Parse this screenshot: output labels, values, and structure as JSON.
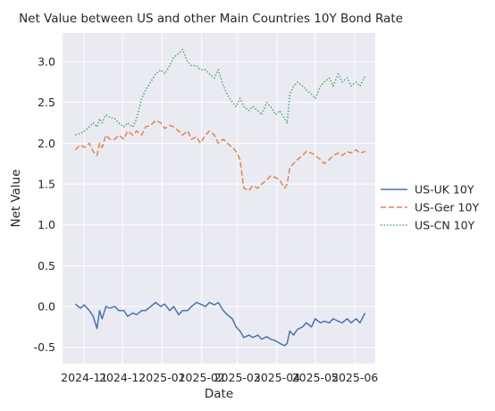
{
  "chart_data": {
    "type": "line",
    "title": "Net Value between US and other Main Countries 10Y Bond Rate",
    "xlabel": "Date",
    "ylabel": "Net Value",
    "ylim": [
      -0.7,
      3.35
    ],
    "xlim": [
      "2024-10-15",
      "2025-06-17"
    ],
    "grid": true,
    "legend_position": "right",
    "x_ticks": [
      "2024-11",
      "2024-12",
      "2025-01",
      "2025-02",
      "2025-03",
      "2025-04",
      "2025-05",
      "2025-06"
    ],
    "y_ticks": [
      "-0.5",
      "0.0",
      "0.5",
      "1.0",
      "1.5",
      "2.0",
      "2.5",
      "3.0"
    ],
    "series": [
      {
        "name": "US-UK 10Y",
        "color": "#4c72b0",
        "style": "solid",
        "points": [
          [
            "2024-10-25",
            0.03
          ],
          [
            "2024-10-29",
            -0.02
          ],
          [
            "2024-11-01",
            0.02
          ],
          [
            "2024-11-05",
            -0.05
          ],
          [
            "2024-11-08",
            -0.12
          ],
          [
            "2024-11-11",
            -0.27
          ],
          [
            "2024-11-13",
            -0.05
          ],
          [
            "2024-11-15",
            -0.15
          ],
          [
            "2024-11-18",
            0.0
          ],
          [
            "2024-11-21",
            -0.02
          ],
          [
            "2024-11-25",
            0.0
          ],
          [
            "2024-11-28",
            -0.05
          ],
          [
            "2024-12-02",
            -0.05
          ],
          [
            "2024-12-05",
            -0.12
          ],
          [
            "2024-12-09",
            -0.08
          ],
          [
            "2024-12-12",
            -0.1
          ],
          [
            "2024-12-16",
            -0.05
          ],
          [
            "2024-12-19",
            -0.05
          ],
          [
            "2024-12-23",
            0.0
          ],
          [
            "2024-12-27",
            0.05
          ],
          [
            "2024-12-31",
            0.0
          ],
          [
            "2025-01-03",
            0.03
          ],
          [
            "2025-01-07",
            -0.05
          ],
          [
            "2025-01-10",
            0.0
          ],
          [
            "2025-01-14",
            -0.1
          ],
          [
            "2025-01-17",
            -0.05
          ],
          [
            "2025-01-21",
            -0.05
          ],
          [
            "2025-01-24",
            0.0
          ],
          [
            "2025-01-28",
            0.05
          ],
          [
            "2025-01-31",
            0.03
          ],
          [
            "2025-02-04",
            0.0
          ],
          [
            "2025-02-07",
            0.05
          ],
          [
            "2025-02-11",
            0.02
          ],
          [
            "2025-02-14",
            0.05
          ],
          [
            "2025-02-18",
            -0.05
          ],
          [
            "2025-02-21",
            -0.1
          ],
          [
            "2025-02-25",
            -0.15
          ],
          [
            "2025-02-28",
            -0.25
          ],
          [
            "2025-03-03",
            -0.3
          ],
          [
            "2025-03-06",
            -0.38
          ],
          [
            "2025-03-10",
            -0.35
          ],
          [
            "2025-03-13",
            -0.38
          ],
          [
            "2025-03-17",
            -0.35
          ],
          [
            "2025-03-20",
            -0.4
          ],
          [
            "2025-03-24",
            -0.37
          ],
          [
            "2025-03-27",
            -0.4
          ],
          [
            "2025-03-31",
            -0.42
          ],
          [
            "2025-04-03",
            -0.45
          ],
          [
            "2025-04-07",
            -0.48
          ],
          [
            "2025-04-09",
            -0.45
          ],
          [
            "2025-04-11",
            -0.3
          ],
          [
            "2025-04-14",
            -0.35
          ],
          [
            "2025-04-17",
            -0.28
          ],
          [
            "2025-04-21",
            -0.25
          ],
          [
            "2025-04-24",
            -0.2
          ],
          [
            "2025-04-28",
            -0.25
          ],
          [
            "2025-05-01",
            -0.15
          ],
          [
            "2025-05-05",
            -0.2
          ],
          [
            "2025-05-08",
            -0.18
          ],
          [
            "2025-05-12",
            -0.2
          ],
          [
            "2025-05-15",
            -0.15
          ],
          [
            "2025-05-19",
            -0.18
          ],
          [
            "2025-05-22",
            -0.2
          ],
          [
            "2025-05-26",
            -0.15
          ],
          [
            "2025-05-29",
            -0.2
          ],
          [
            "2025-06-02",
            -0.15
          ],
          [
            "2025-06-05",
            -0.2
          ],
          [
            "2025-06-09",
            -0.08
          ]
        ]
      },
      {
        "name": "US-Ger 10Y",
        "color": "#dd8452",
        "style": "dashed",
        "points": [
          [
            "2024-10-25",
            1.92
          ],
          [
            "2024-10-29",
            1.98
          ],
          [
            "2024-11-01",
            1.95
          ],
          [
            "2024-11-05",
            2.0
          ],
          [
            "2024-11-08",
            1.9
          ],
          [
            "2024-11-11",
            1.85
          ],
          [
            "2024-11-13",
            2.0
          ],
          [
            "2024-11-15",
            1.95
          ],
          [
            "2024-11-18",
            2.1
          ],
          [
            "2024-11-21",
            2.05
          ],
          [
            "2024-11-25",
            2.05
          ],
          [
            "2024-11-28",
            2.1
          ],
          [
            "2024-12-02",
            2.05
          ],
          [
            "2024-12-05",
            2.15
          ],
          [
            "2024-12-09",
            2.1
          ],
          [
            "2024-12-12",
            2.15
          ],
          [
            "2024-12-16",
            2.1
          ],
          [
            "2024-12-19",
            2.2
          ],
          [
            "2024-12-23",
            2.22
          ],
          [
            "2024-12-27",
            2.28
          ],
          [
            "2024-12-31",
            2.25
          ],
          [
            "2025-01-03",
            2.18
          ],
          [
            "2025-01-07",
            2.22
          ],
          [
            "2025-01-10",
            2.2
          ],
          [
            "2025-01-14",
            2.15
          ],
          [
            "2025-01-17",
            2.1
          ],
          [
            "2025-01-21",
            2.15
          ],
          [
            "2025-01-24",
            2.05
          ],
          [
            "2025-01-28",
            2.08
          ],
          [
            "2025-01-31",
            2.0
          ],
          [
            "2025-02-04",
            2.1
          ],
          [
            "2025-02-07",
            2.15
          ],
          [
            "2025-02-11",
            2.1
          ],
          [
            "2025-02-14",
            2.0
          ],
          [
            "2025-02-18",
            2.05
          ],
          [
            "2025-02-21",
            2.0
          ],
          [
            "2025-02-25",
            1.95
          ],
          [
            "2025-02-28",
            1.9
          ],
          [
            "2025-03-03",
            1.8
          ],
          [
            "2025-03-06",
            1.45
          ],
          [
            "2025-03-10",
            1.42
          ],
          [
            "2025-03-13",
            1.48
          ],
          [
            "2025-03-17",
            1.45
          ],
          [
            "2025-03-20",
            1.5
          ],
          [
            "2025-03-24",
            1.55
          ],
          [
            "2025-03-27",
            1.6
          ],
          [
            "2025-03-31",
            1.58
          ],
          [
            "2025-04-03",
            1.55
          ],
          [
            "2025-04-07",
            1.45
          ],
          [
            "2025-04-09",
            1.5
          ],
          [
            "2025-04-11",
            1.7
          ],
          [
            "2025-04-14",
            1.75
          ],
          [
            "2025-04-17",
            1.8
          ],
          [
            "2025-04-21",
            1.85
          ],
          [
            "2025-04-24",
            1.9
          ],
          [
            "2025-04-28",
            1.88
          ],
          [
            "2025-05-01",
            1.85
          ],
          [
            "2025-05-05",
            1.8
          ],
          [
            "2025-05-08",
            1.75
          ],
          [
            "2025-05-12",
            1.8
          ],
          [
            "2025-05-15",
            1.85
          ],
          [
            "2025-05-19",
            1.88
          ],
          [
            "2025-05-22",
            1.85
          ],
          [
            "2025-05-26",
            1.9
          ],
          [
            "2025-05-29",
            1.88
          ],
          [
            "2025-06-02",
            1.92
          ],
          [
            "2025-06-05",
            1.88
          ],
          [
            "2025-06-09",
            1.9
          ]
        ]
      },
      {
        "name": "US-CN 10Y",
        "color": "#55a868",
        "style": "dotted",
        "points": [
          [
            "2024-10-25",
            2.1
          ],
          [
            "2024-10-29",
            2.12
          ],
          [
            "2024-11-01",
            2.15
          ],
          [
            "2024-11-05",
            2.2
          ],
          [
            "2024-11-08",
            2.25
          ],
          [
            "2024-11-11",
            2.2
          ],
          [
            "2024-11-13",
            2.3
          ],
          [
            "2024-11-15",
            2.25
          ],
          [
            "2024-11-18",
            2.35
          ],
          [
            "2024-11-21",
            2.32
          ],
          [
            "2024-11-25",
            2.3
          ],
          [
            "2024-11-28",
            2.25
          ],
          [
            "2024-12-02",
            2.2
          ],
          [
            "2024-12-05",
            2.25
          ],
          [
            "2024-12-09",
            2.2
          ],
          [
            "2024-12-12",
            2.3
          ],
          [
            "2024-12-16",
            2.55
          ],
          [
            "2024-12-19",
            2.65
          ],
          [
            "2024-12-23",
            2.75
          ],
          [
            "2024-12-27",
            2.85
          ],
          [
            "2024-12-31",
            2.9
          ],
          [
            "2025-01-03",
            2.85
          ],
          [
            "2025-01-07",
            2.95
          ],
          [
            "2025-01-10",
            3.05
          ],
          [
            "2025-01-14",
            3.1
          ],
          [
            "2025-01-17",
            3.15
          ],
          [
            "2025-01-21",
            3.0
          ],
          [
            "2025-01-24",
            2.95
          ],
          [
            "2025-01-28",
            2.95
          ],
          [
            "2025-01-31",
            2.9
          ],
          [
            "2025-02-04",
            2.9
          ],
          [
            "2025-02-07",
            2.85
          ],
          [
            "2025-02-11",
            2.8
          ],
          [
            "2025-02-14",
            2.9
          ],
          [
            "2025-02-18",
            2.7
          ],
          [
            "2025-02-21",
            2.6
          ],
          [
            "2025-02-25",
            2.5
          ],
          [
            "2025-02-28",
            2.45
          ],
          [
            "2025-03-03",
            2.55
          ],
          [
            "2025-03-06",
            2.45
          ],
          [
            "2025-03-10",
            2.4
          ],
          [
            "2025-03-13",
            2.45
          ],
          [
            "2025-03-17",
            2.4
          ],
          [
            "2025-03-20",
            2.35
          ],
          [
            "2025-03-24",
            2.5
          ],
          [
            "2025-03-27",
            2.45
          ],
          [
            "2025-03-31",
            2.35
          ],
          [
            "2025-04-03",
            2.4
          ],
          [
            "2025-04-07",
            2.3
          ],
          [
            "2025-04-09",
            2.25
          ],
          [
            "2025-04-11",
            2.6
          ],
          [
            "2025-04-14",
            2.7
          ],
          [
            "2025-04-17",
            2.75
          ],
          [
            "2025-04-21",
            2.7
          ],
          [
            "2025-04-24",
            2.65
          ],
          [
            "2025-04-28",
            2.6
          ],
          [
            "2025-05-01",
            2.55
          ],
          [
            "2025-05-05",
            2.7
          ],
          [
            "2025-05-08",
            2.75
          ],
          [
            "2025-05-12",
            2.8
          ],
          [
            "2025-05-15",
            2.7
          ],
          [
            "2025-05-19",
            2.85
          ],
          [
            "2025-05-22",
            2.75
          ],
          [
            "2025-05-26",
            2.8
          ],
          [
            "2025-05-29",
            2.7
          ],
          [
            "2025-06-02",
            2.75
          ],
          [
            "2025-06-05",
            2.7
          ],
          [
            "2025-06-09",
            2.82
          ]
        ]
      }
    ]
  }
}
